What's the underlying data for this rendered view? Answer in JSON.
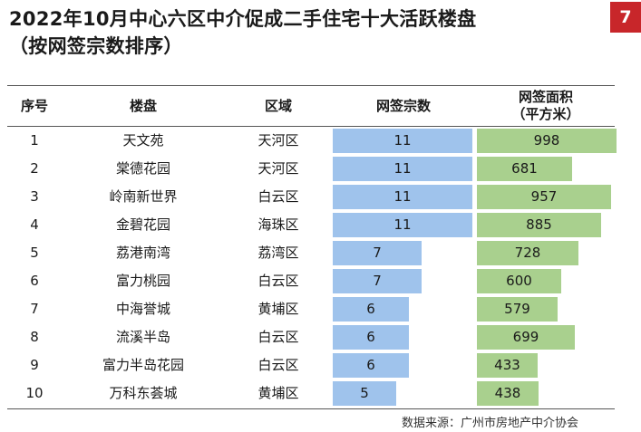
{
  "title_lines": [
    "2022年10月中心六区中介促成二手住宅十大活跃楼盘",
    "（按网签宗数排序）"
  ],
  "page_number": "7",
  "header": {
    "rank": "序号",
    "project": "楼盘",
    "district": "区域",
    "deals": "网签宗数",
    "area_line1": "网签面积",
    "area_line2": "（平方米）"
  },
  "rows": [
    {
      "rank": "1",
      "project": "天文苑",
      "district": "天河区",
      "deals": "11",
      "area": "998"
    },
    {
      "rank": "2",
      "project": "棠德花园",
      "district": "天河区",
      "deals": "11",
      "area": "681"
    },
    {
      "rank": "3",
      "project": "岭南新世界",
      "district": "白云区",
      "deals": "11",
      "area": "957"
    },
    {
      "rank": "4",
      "project": "金碧花园",
      "district": "海珠区",
      "deals": "11",
      "area": "885"
    },
    {
      "rank": "5",
      "project": "荔港南湾",
      "district": "荔湾区",
      "deals": "7",
      "area": "728"
    },
    {
      "rank": "6",
      "project": "富力桃园",
      "district": "白云区",
      "deals": "7",
      "area": "600"
    },
    {
      "rank": "7",
      "project": "中海誉城",
      "district": "黄埔区",
      "deals": "6",
      "area": "579"
    },
    {
      "rank": "8",
      "project": "流溪半岛",
      "district": "白云区",
      "deals": "6",
      "area": "699"
    },
    {
      "rank": "9",
      "project": "富力半岛花园",
      "district": "白云区",
      "deals": "6",
      "area": "433"
    },
    {
      "rank": "10",
      "project": "万科东荟城",
      "district": "黄埔区",
      "deals": "5",
      "area": "438"
    }
  ],
  "bar_scale": {
    "deals_max": 11,
    "area_max": 998
  },
  "colors": {
    "deals_bar": "#9fc3ec",
    "area_bar": "#a9d08e",
    "badge": "#c8262a"
  },
  "source": "数据来源：广州市房地产中介协会"
}
